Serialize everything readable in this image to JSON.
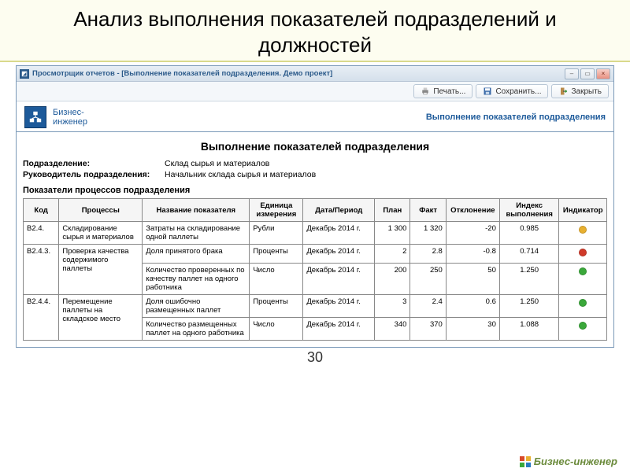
{
  "slide": {
    "title": "Анализ выполнения показателей подразделений и должностей",
    "page_number": "30"
  },
  "window": {
    "title": "Просмотрщик отчетов -  [Выполнение показателей подразделения. Демо проект]",
    "controls": {
      "min": "–",
      "max": "▭",
      "close": "×"
    }
  },
  "toolbar": {
    "print": "Печать...",
    "save": "Сохранить...",
    "close": "Закрыть"
  },
  "brand": {
    "line1": "Бизнес-",
    "line2": "инженер",
    "footer": "Бизнес-инженер"
  },
  "header_right": "Выполнение показателей подразделения",
  "report": {
    "title": "Выполнение показателей подразделения",
    "meta": {
      "dep_label": "Подразделение:",
      "dep_value": "Склад сырья и материалов",
      "head_label": "Руководитель подразделения:",
      "head_value": "Начальник склада сырья и материалов"
    },
    "section": "Показатели процессов подразделения"
  },
  "table": {
    "columns": [
      "Код",
      "Процессы",
      "Название показателя",
      "Единица измерения",
      "Дата/Период",
      "План",
      "Факт",
      "Отклонение",
      "Индекс выполнения",
      "Индикатор"
    ],
    "groups": [
      {
        "code": "B2.4.",
        "process": "Складирование сырья и материалов",
        "rows": [
          {
            "name": "Затраты на складирование одной паллеты",
            "unit": "Рубли",
            "period": "Декабрь 2014 г.",
            "plan": "1 300",
            "fact": "1 320",
            "dev": "-20",
            "idx": "0.985",
            "ind_color": "#e8b030"
          }
        ]
      },
      {
        "code": "B2.4.3.",
        "process": "Проверка качества содержимого паллеты",
        "rows": [
          {
            "name": "Доля принятого брака",
            "unit": "Проценты",
            "period": "Декабрь 2014 г.",
            "plan": "2",
            "fact": "2.8",
            "dev": "-0.8",
            "idx": "0.714",
            "ind_color": "#d03a2a"
          },
          {
            "name": "Количество проверенных по качеству паллет на одного работника",
            "unit": "Число",
            "period": "Декабрь 2014 г.",
            "plan": "200",
            "fact": "250",
            "dev": "50",
            "idx": "1.250",
            "ind_color": "#3aa83a"
          }
        ]
      },
      {
        "code": "B2.4.4.",
        "process": "Перемещение паллеты на складское место",
        "rows": [
          {
            "name": "Доля ошибочно размещенных паллет",
            "unit": "Проценты",
            "period": "Декабрь 2014 г.",
            "plan": "3",
            "fact": "2.4",
            "dev": "0.6",
            "idx": "1.250",
            "ind_color": "#3aa83a"
          },
          {
            "name": "Количество размещенных паллет на одного работника",
            "unit": "Число",
            "period": "Декабрь 2014 г.",
            "plan": "340",
            "fact": "370",
            "dev": "30",
            "idx": "1.088",
            "ind_color": "#3aa83a"
          }
        ]
      }
    ]
  },
  "colors": {
    "titlebar_text": "#2b5a8a",
    "window_border": "#7a99b8",
    "brand_blue": "#1d5a9a",
    "footer_green": "#6a8a3a",
    "fb": [
      "#d84a2a",
      "#e8b030",
      "#3aa83a",
      "#2a7ac0"
    ]
  }
}
